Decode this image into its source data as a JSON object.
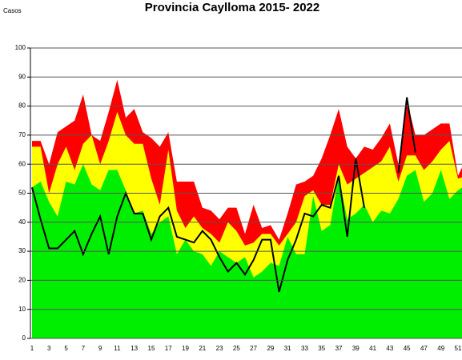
{
  "chart_data": {
    "type": "area",
    "title": "Provincia Caylloma 2015- 2022",
    "y_label": "Casos",
    "categories": [
      1,
      null,
      3,
      null,
      5,
      null,
      7,
      null,
      9,
      null,
      11,
      null,
      13,
      null,
      15,
      null,
      17,
      null,
      19,
      null,
      21,
      null,
      23,
      null,
      25,
      null,
      27,
      null,
      29,
      null,
      31,
      null,
      33,
      null,
      35,
      null,
      37,
      null,
      39,
      null,
      41,
      null,
      43,
      null,
      45,
      null,
      47,
      null,
      49,
      null,
      51,
      null
    ],
    "ylim": [
      0,
      100
    ],
    "yticks": [
      0,
      10,
      20,
      30,
      40,
      50,
      60,
      70,
      80,
      90,
      100
    ],
    "grid": true,
    "series": [
      {
        "color": "#ff0000",
        "values": [
          68,
          68,
          60,
          71,
          73,
          75,
          84,
          70,
          68,
          78,
          89,
          76,
          79,
          71,
          69,
          66,
          71,
          54,
          54,
          54,
          45,
          44,
          41,
          45,
          45,
          36,
          46,
          38,
          39,
          34,
          43,
          53,
          54,
          56,
          62,
          70,
          79,
          66,
          62,
          66,
          65,
          69,
          74,
          60,
          82,
          70,
          70,
          72,
          74,
          74,
          56,
          62
        ]
      },
      {
        "color": "#ffff00",
        "values": [
          66,
          66,
          50,
          60,
          66,
          58,
          67,
          70,
          60,
          68,
          78,
          70,
          67,
          67,
          55,
          46,
          65,
          44,
          38,
          42,
          38,
          36,
          33,
          40,
          37,
          32,
          33,
          36,
          36,
          32,
          36,
          40,
          49,
          51,
          46,
          46,
          60,
          53,
          55,
          57,
          59,
          61,
          66,
          54,
          63,
          63,
          58,
          61,
          65,
          68,
          55,
          56
        ]
      },
      {
        "color": "#00ee00",
        "values": [
          52,
          54,
          47,
          42,
          54,
          53,
          60,
          53,
          51,
          58,
          58,
          51,
          43,
          44,
          36,
          40,
          42,
          29,
          34,
          30,
          29,
          25,
          30,
          28,
          26,
          28,
          21,
          23,
          26,
          25,
          35,
          29,
          29,
          49,
          37,
          39,
          56,
          41,
          43,
          46,
          40,
          44,
          43,
          48,
          56,
          58,
          47,
          50,
          58,
          48,
          51,
          53
        ]
      },
      {
        "color": "#000000",
        "line": true,
        "values": [
          52,
          41,
          31,
          31,
          34,
          37,
          29,
          36,
          42,
          29,
          42,
          50,
          43,
          43,
          34,
          42,
          45,
          35,
          34,
          33,
          37,
          34,
          28,
          23,
          26,
          22,
          27,
          34,
          34,
          16,
          27,
          34,
          43,
          42,
          46,
          45,
          56,
          35,
          62,
          45,
          null,
          null,
          null,
          57,
          83,
          64,
          null,
          null,
          null,
          null,
          null,
          null
        ]
      }
    ]
  }
}
